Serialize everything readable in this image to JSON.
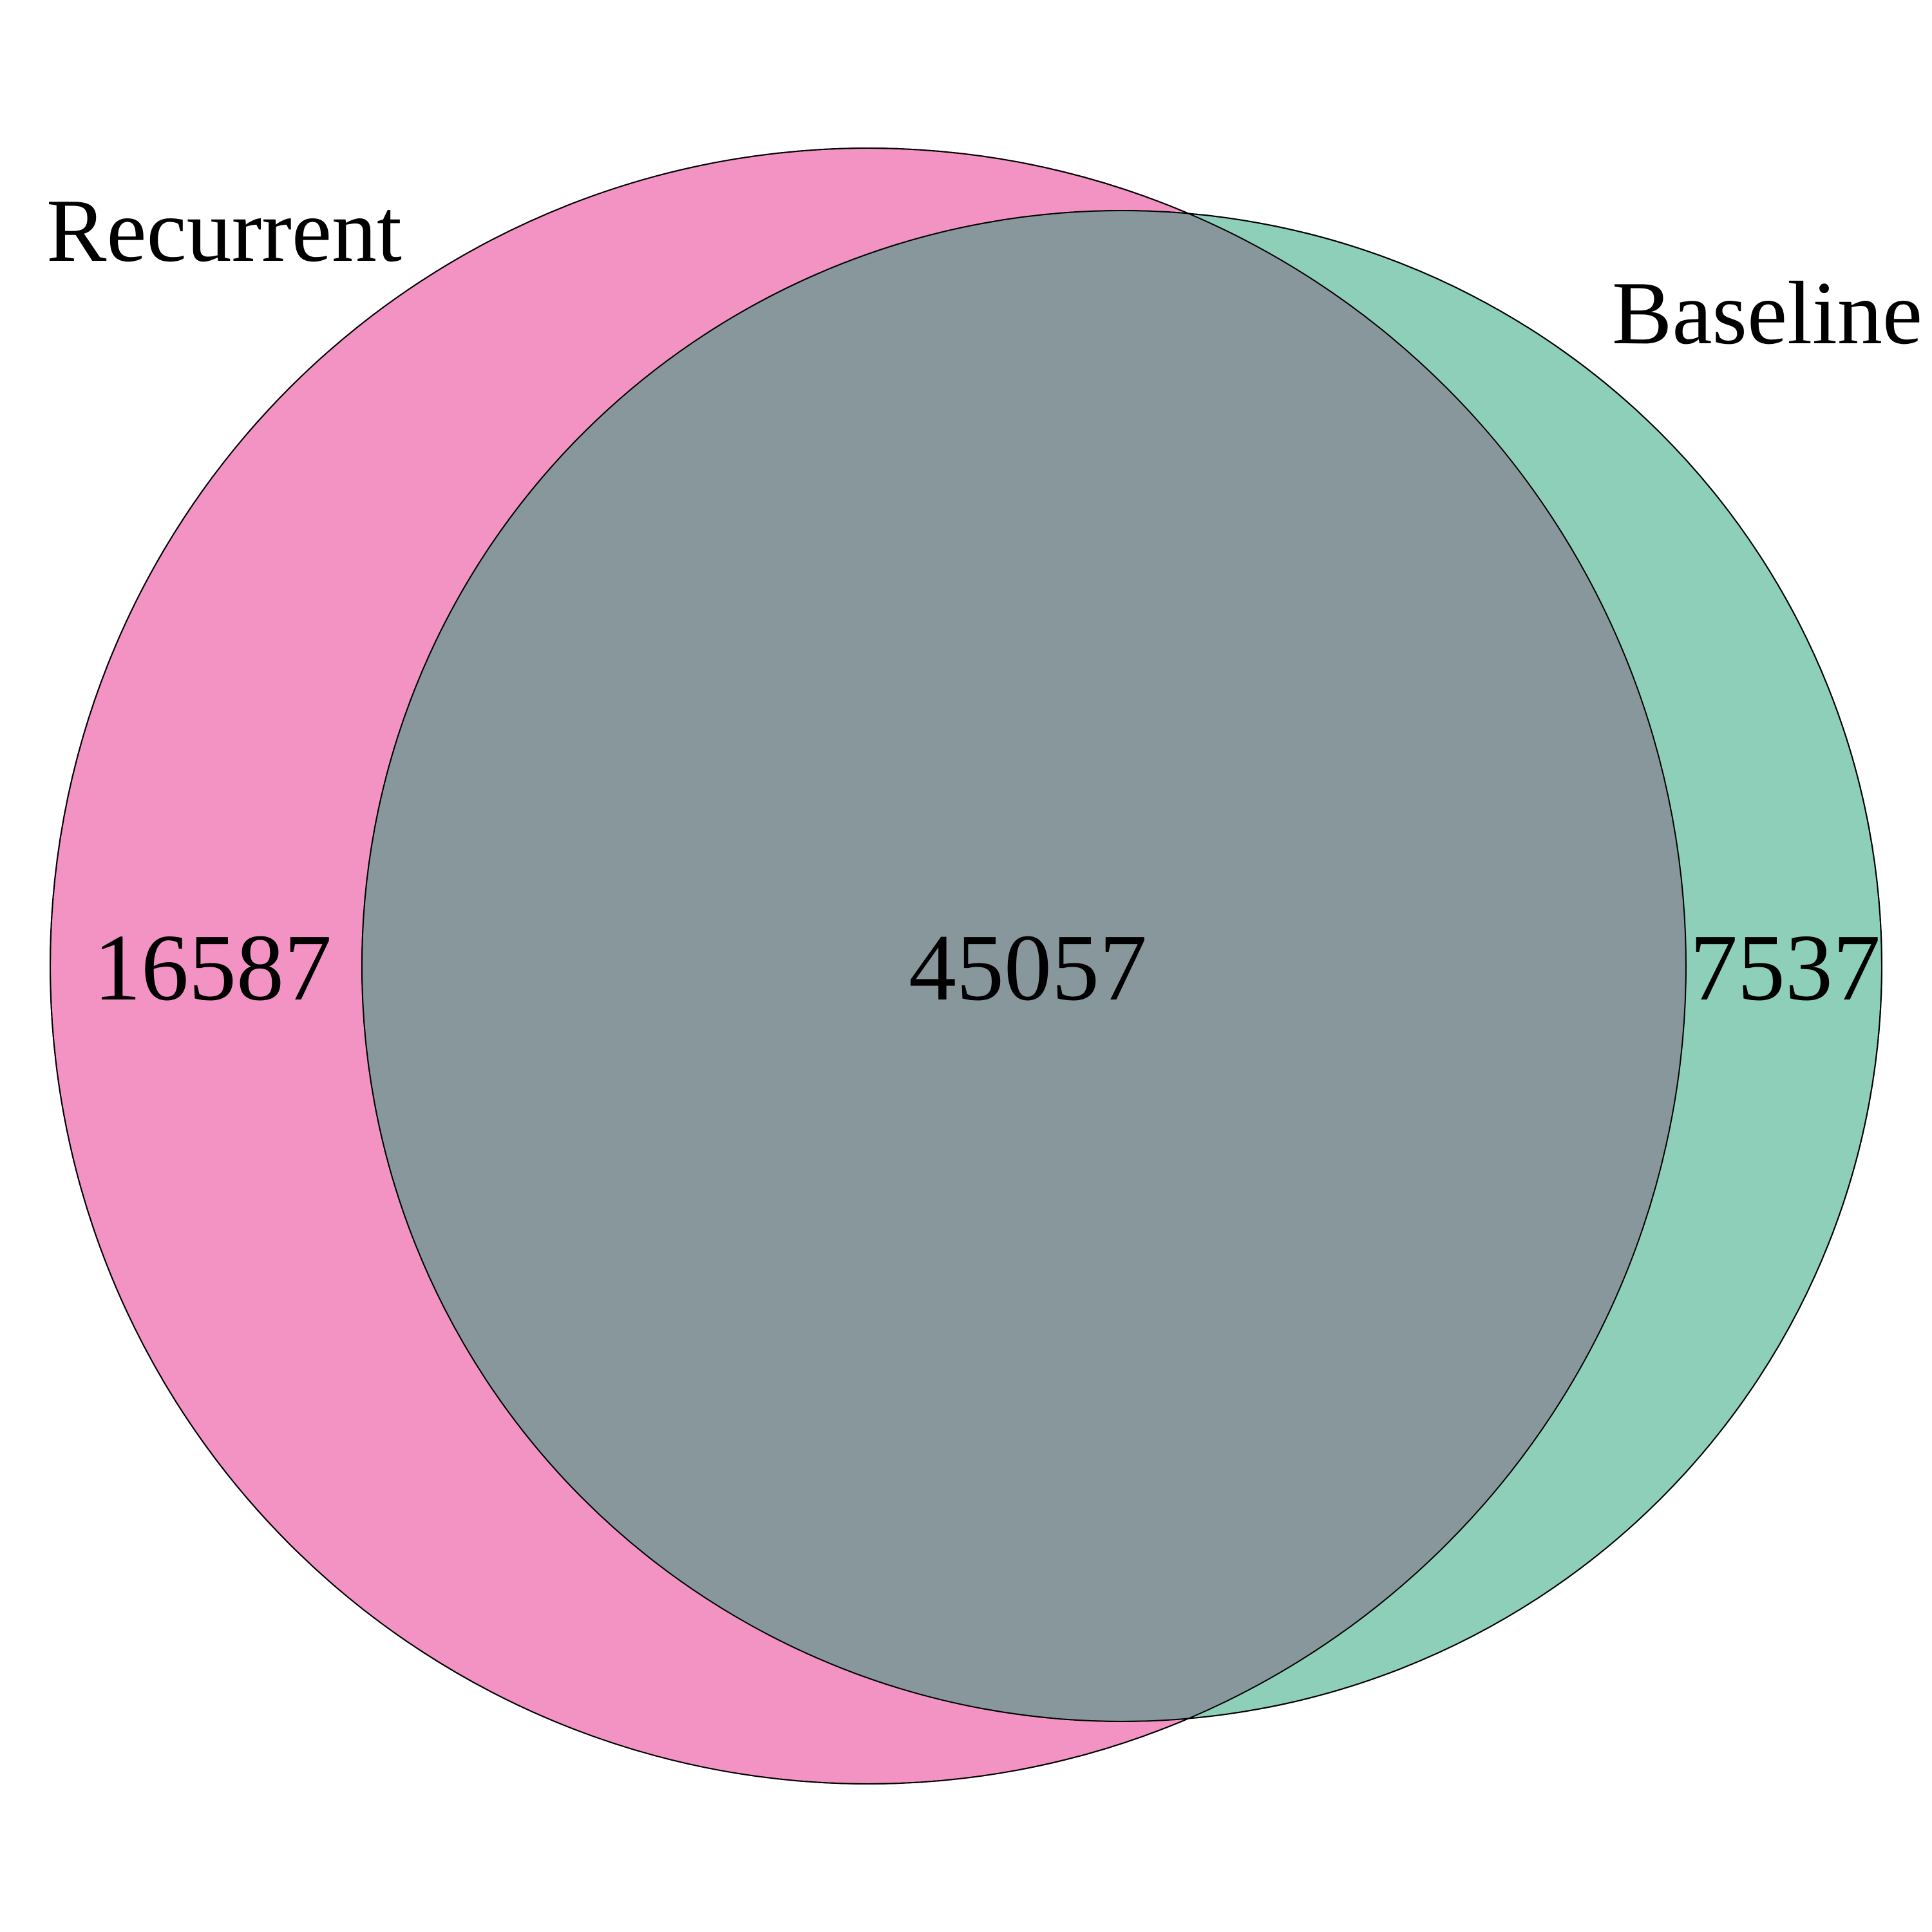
{
  "diagram": {
    "type": "venn",
    "sets": [
      {
        "name": "Recurrent",
        "color": "#f393c3",
        "only_count": "16587"
      },
      {
        "name": "Baseline",
        "color": "#8ecfba",
        "only_count": "7537"
      }
    ],
    "intersection": {
      "count": "45057",
      "color": "#88979c"
    },
    "outline_color": "#000000"
  }
}
